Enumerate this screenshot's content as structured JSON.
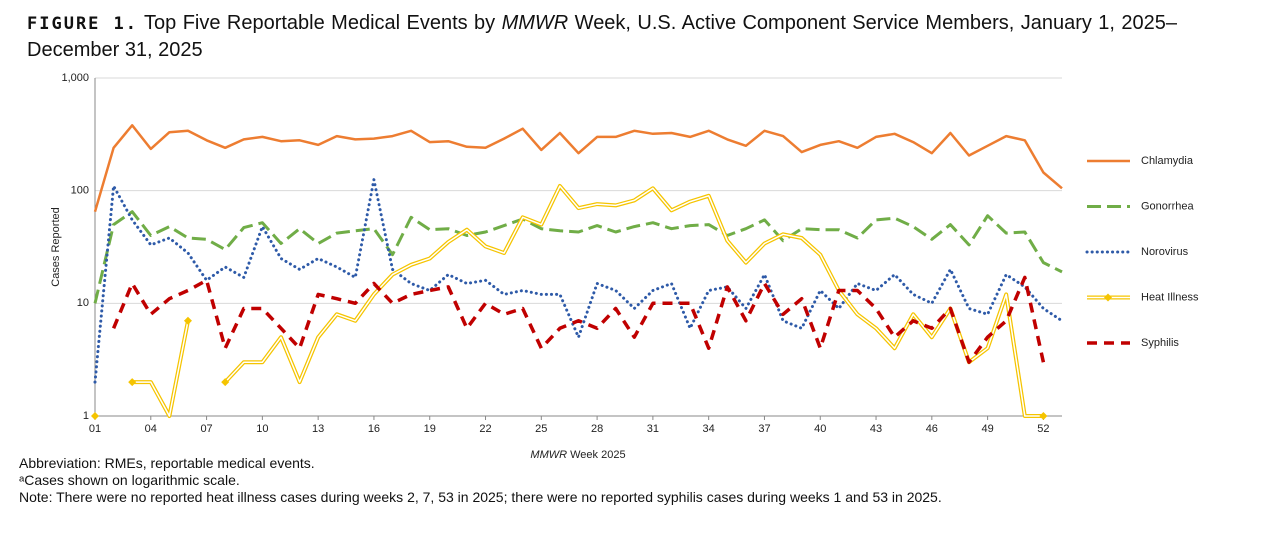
{
  "chart_data": {
    "type": "line",
    "figure_label": "FIGURE 1.",
    "title": [
      "Top Five Reportable Medical Events by",
      "MMWR",
      "Week, U.S. Active Component Service Members, January 1, 2025– December 31, 2025"
    ],
    "x_label": [
      "MMWR",
      "Week 2025"
    ],
    "y_label": "Cases Reported",
    "notes": [
      "Abbreviation: RMEs, reportable medical events.",
      "ᵃCases shown on logarithmic scale.",
      "Note: There were no reported heat illness cases during weeks 2, 7, 53 in 2025; there were no reported syphilis cases during weeks 1 and 53 in 2025."
    ],
    "categories": [
      "01",
      null,
      null,
      "04",
      null,
      null,
      "07",
      null,
      null,
      "10",
      null,
      null,
      "13",
      null,
      null,
      "16",
      null,
      null,
      "19",
      null,
      null,
      "22",
      null,
      null,
      "25",
      null,
      null,
      "28",
      null,
      null,
      "31",
      null,
      null,
      "34",
      null,
      null,
      "37",
      null,
      null,
      "40",
      null,
      null,
      "43",
      null,
      null,
      "46",
      null,
      null,
      "49",
      null,
      null,
      "52",
      null
    ],
    "log_scale": true,
    "ylim": [
      1,
      1000
    ],
    "yticks": [
      1,
      10,
      100,
      {
        "value": 1000,
        "label": "1,000"
      }
    ],
    "grid": true,
    "legend": "right",
    "series": [
      {
        "name": "Chlamydia",
        "color": "#ed7d31",
        "style": "solid",
        "values": [
          65,
          240,
          380,
          235,
          330,
          340,
          280,
          240,
          285,
          300,
          275,
          280,
          255,
          305,
          285,
          290,
          305,
          340,
          270,
          275,
          245,
          240,
          290,
          355,
          230,
          325,
          215,
          300,
          300,
          340,
          320,
          325,
          300,
          340,
          285,
          250,
          340,
          305,
          220,
          255,
          275,
          240,
          300,
          320,
          270,
          215,
          325,
          205,
          250,
          305,
          280,
          145,
          105
        ]
      },
      {
        "name": "Gonorrhea",
        "color": "#70ad47",
        "style": "dashed",
        "values": [
          10,
          50,
          65,
          40,
          48,
          38,
          37,
          30,
          47,
          52,
          34,
          46,
          34,
          42,
          44,
          46,
          27,
          58,
          45,
          46,
          40,
          43,
          49,
          56,
          46,
          44,
          43,
          49,
          43,
          48,
          52,
          46,
          49,
          50,
          40,
          46,
          55,
          36,
          46,
          45,
          45,
          38,
          55,
          57,
          48,
          37,
          50,
          33,
          60,
          42,
          43,
          23,
          19
        ]
      },
      {
        "name": "Norovirus",
        "color": "#2e5aa8",
        "style": "dotted",
        "values": [
          2,
          110,
          55,
          33,
          38,
          28,
          16,
          21,
          17,
          48,
          25,
          20,
          25,
          21,
          17,
          125,
          20,
          15,
          13,
          18,
          15,
          16,
          12,
          13,
          12,
          12,
          5,
          15,
          13,
          9,
          13,
          15,
          6,
          13,
          14,
          9,
          18,
          7,
          6,
          13,
          9,
          15,
          13,
          18,
          12,
          10,
          20,
          9,
          8,
          18,
          14,
          9,
          7
        ]
      },
      {
        "name": "Heat Illness",
        "color": "#f5c400",
        "style": "double",
        "values": [
          1,
          null,
          2,
          2,
          1,
          7,
          null,
          2,
          3,
          3,
          5,
          2,
          5,
          8,
          7,
          12,
          18,
          22,
          25,
          35,
          45,
          32,
          28,
          58,
          50,
          110,
          70,
          76,
          74,
          82,
          105,
          67,
          80,
          90,
          36,
          23,
          34,
          41,
          38,
          27,
          13,
          8,
          6,
          4,
          8,
          5,
          9,
          3,
          4,
          12,
          1,
          1,
          null
        ]
      },
      {
        "name": "Syphilis",
        "color": "#c00000",
        "style": "dash",
        "values": [
          null,
          6,
          15,
          8,
          11,
          13,
          16,
          4,
          9,
          9,
          6,
          4,
          12,
          11,
          10,
          15,
          10,
          12,
          13,
          14,
          6,
          10,
          8,
          9,
          4,
          6,
          7,
          6,
          9,
          5,
          10,
          10,
          10,
          4,
          14,
          7,
          15,
          8,
          11,
          4,
          13,
          13,
          9,
          5,
          7,
          6,
          9,
          3,
          5,
          7,
          17,
          3,
          null
        ]
      }
    ]
  }
}
